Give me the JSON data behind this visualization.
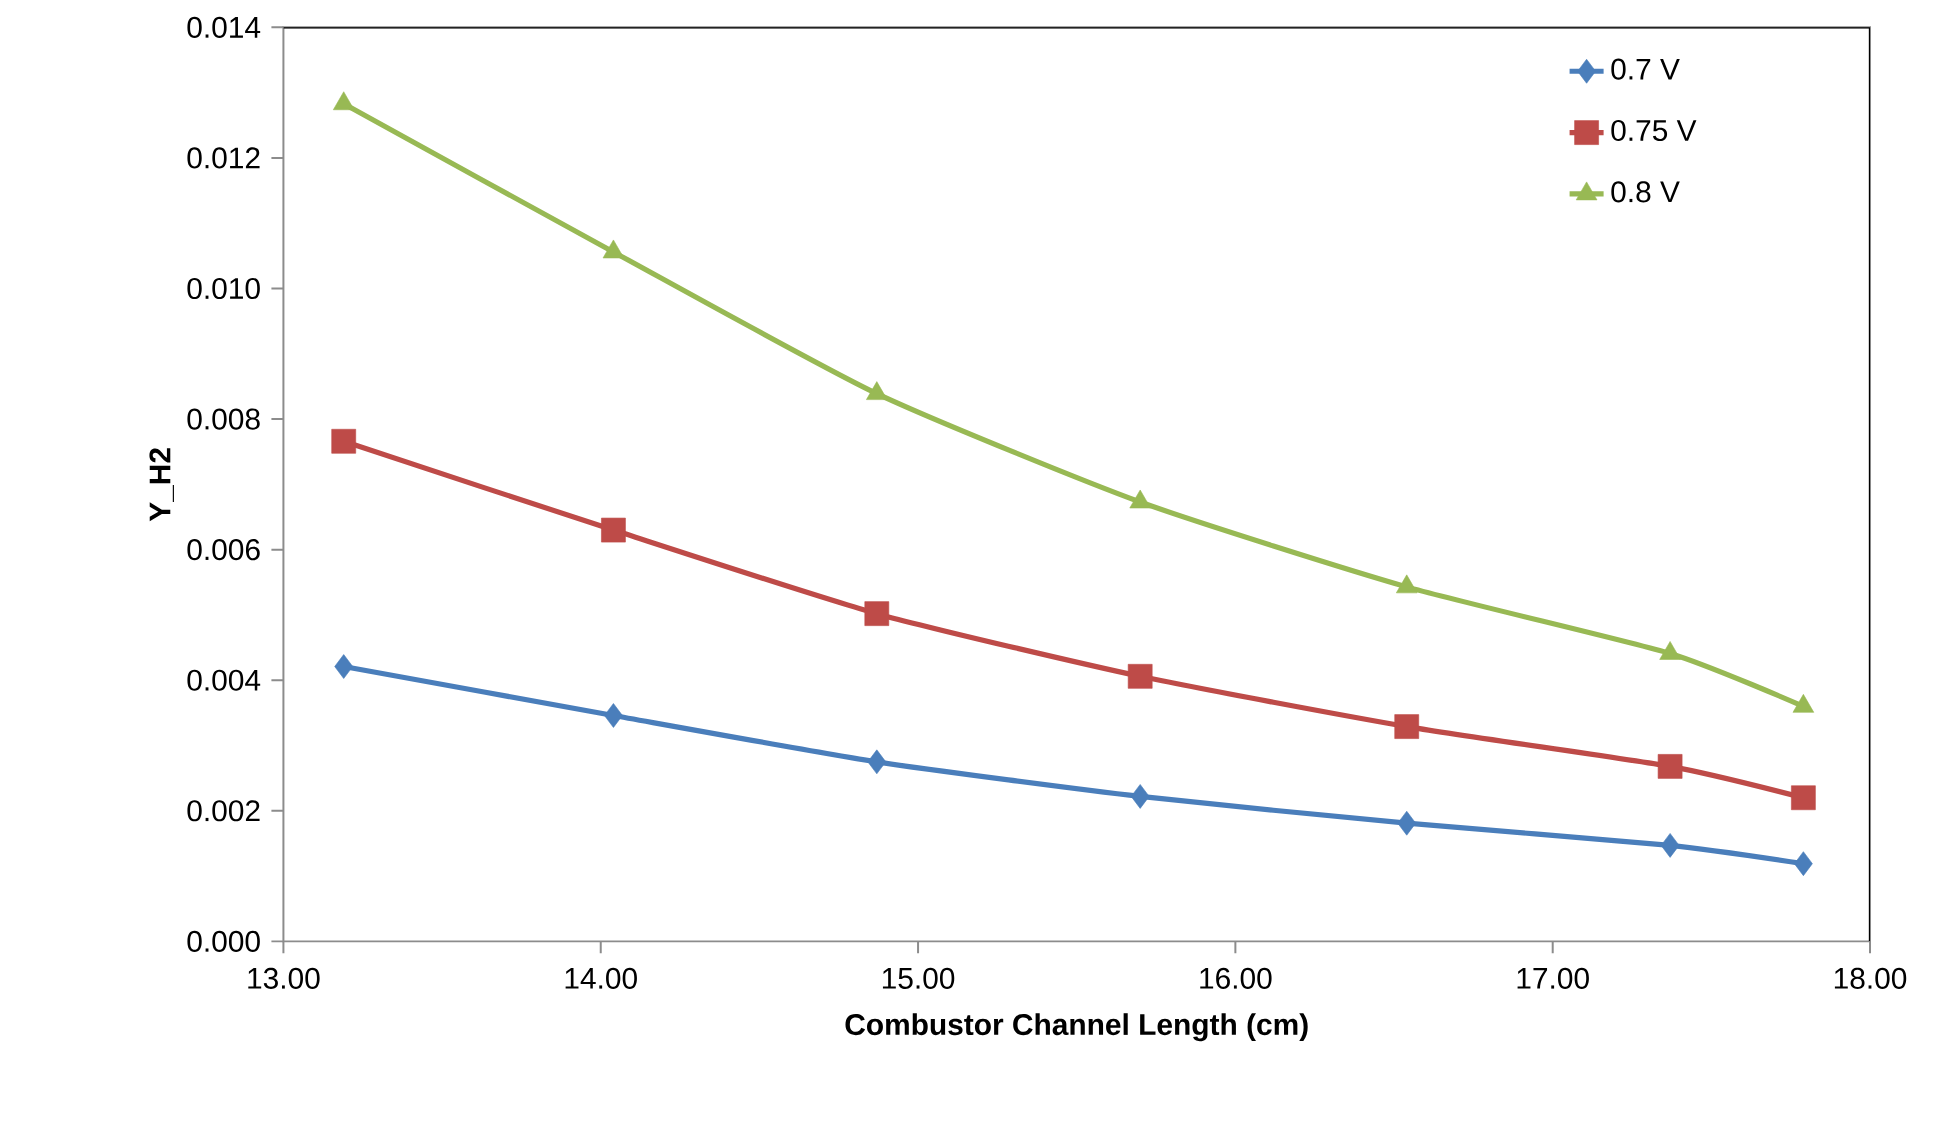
{
  "chart_data": {
    "type": "line",
    "xlabel": "Combustor Channel Length (cm)",
    "ylabel": "Y_H2",
    "x": [
      13.19,
      14.04,
      14.87,
      15.7,
      16.54,
      17.37,
      17.79
    ],
    "series": [
      {
        "name": "0.7 V",
        "color": "#4a7ebb",
        "marker": "diamond",
        "values": [
          0.00421,
          0.00346,
          0.00275,
          0.00222,
          0.00181,
          0.00147,
          0.00119
        ]
      },
      {
        "name": "0.75 V",
        "color": "#be4b48",
        "marker": "square",
        "values": [
          0.00766,
          0.0063,
          0.00502,
          0.00406,
          0.00329,
          0.00268,
          0.0022
        ]
      },
      {
        "name": "0.8 V",
        "color": "#98b954",
        "marker": "triangle",
        "values": [
          0.01283,
          0.01056,
          0.00839,
          0.00673,
          0.00543,
          0.00441,
          0.0036
        ]
      }
    ],
    "xlim": [
      13,
      18
    ],
    "ylim": [
      0,
      0.014
    ],
    "xticks": [
      {
        "value": 13,
        "label": "13.00"
      },
      {
        "value": 14,
        "label": "14.00"
      },
      {
        "value": 15,
        "label": "15.00"
      },
      {
        "value": 16,
        "label": "16.00"
      },
      {
        "value": 17,
        "label": "17.00"
      },
      {
        "value": 18,
        "label": "18.00"
      }
    ],
    "yticks": [
      {
        "value": 0,
        "label": "0.000"
      },
      {
        "value": 0.002,
        "label": "0.002"
      },
      {
        "value": 0.004,
        "label": "0.004"
      },
      {
        "value": 0.006,
        "label": "0.006"
      },
      {
        "value": 0.008,
        "label": "0.008"
      },
      {
        "value": 0.01,
        "label": "0.010"
      },
      {
        "value": 0.012,
        "label": "0.012"
      },
      {
        "value": 0.014,
        "label": "0.014"
      }
    ],
    "grid": false,
    "legend": "top right",
    "line_style": "solid"
  }
}
